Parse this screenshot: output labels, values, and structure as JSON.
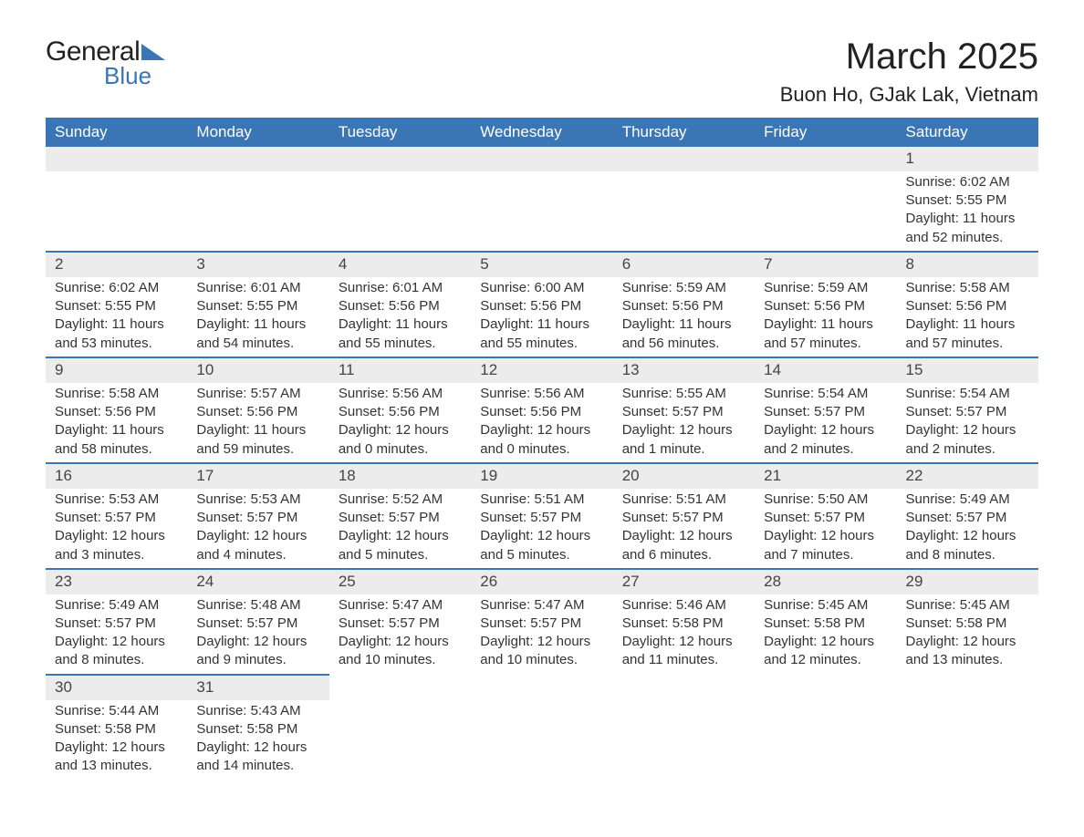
{
  "logo": {
    "top": "General",
    "bottom": "Blue"
  },
  "title": "March 2025",
  "location": "Buon Ho, GJak Lak, Vietnam",
  "colors": {
    "header_bg": "#3a75b5",
    "header_text": "#ffffff",
    "row_stripe": "#ececec",
    "border": "#3a75b5",
    "text": "#333333"
  },
  "weekdays": [
    "Sunday",
    "Monday",
    "Tuesday",
    "Wednesday",
    "Thursday",
    "Friday",
    "Saturday"
  ],
  "weeks": [
    [
      null,
      null,
      null,
      null,
      null,
      null,
      {
        "day": "1",
        "sunrise": "Sunrise: 6:02 AM",
        "sunset": "Sunset: 5:55 PM",
        "daylight": "Daylight: 11 hours and 52 minutes."
      }
    ],
    [
      {
        "day": "2",
        "sunrise": "Sunrise: 6:02 AM",
        "sunset": "Sunset: 5:55 PM",
        "daylight": "Daylight: 11 hours and 53 minutes."
      },
      {
        "day": "3",
        "sunrise": "Sunrise: 6:01 AM",
        "sunset": "Sunset: 5:55 PM",
        "daylight": "Daylight: 11 hours and 54 minutes."
      },
      {
        "day": "4",
        "sunrise": "Sunrise: 6:01 AM",
        "sunset": "Sunset: 5:56 PM",
        "daylight": "Daylight: 11 hours and 55 minutes."
      },
      {
        "day": "5",
        "sunrise": "Sunrise: 6:00 AM",
        "sunset": "Sunset: 5:56 PM",
        "daylight": "Daylight: 11 hours and 55 minutes."
      },
      {
        "day": "6",
        "sunrise": "Sunrise: 5:59 AM",
        "sunset": "Sunset: 5:56 PM",
        "daylight": "Daylight: 11 hours and 56 minutes."
      },
      {
        "day": "7",
        "sunrise": "Sunrise: 5:59 AM",
        "sunset": "Sunset: 5:56 PM",
        "daylight": "Daylight: 11 hours and 57 minutes."
      },
      {
        "day": "8",
        "sunrise": "Sunrise: 5:58 AM",
        "sunset": "Sunset: 5:56 PM",
        "daylight": "Daylight: 11 hours and 57 minutes."
      }
    ],
    [
      {
        "day": "9",
        "sunrise": "Sunrise: 5:58 AM",
        "sunset": "Sunset: 5:56 PM",
        "daylight": "Daylight: 11 hours and 58 minutes."
      },
      {
        "day": "10",
        "sunrise": "Sunrise: 5:57 AM",
        "sunset": "Sunset: 5:56 PM",
        "daylight": "Daylight: 11 hours and 59 minutes."
      },
      {
        "day": "11",
        "sunrise": "Sunrise: 5:56 AM",
        "sunset": "Sunset: 5:56 PM",
        "daylight": "Daylight: 12 hours and 0 minutes."
      },
      {
        "day": "12",
        "sunrise": "Sunrise: 5:56 AM",
        "sunset": "Sunset: 5:56 PM",
        "daylight": "Daylight: 12 hours and 0 minutes."
      },
      {
        "day": "13",
        "sunrise": "Sunrise: 5:55 AM",
        "sunset": "Sunset: 5:57 PM",
        "daylight": "Daylight: 12 hours and 1 minute."
      },
      {
        "day": "14",
        "sunrise": "Sunrise: 5:54 AM",
        "sunset": "Sunset: 5:57 PM",
        "daylight": "Daylight: 12 hours and 2 minutes."
      },
      {
        "day": "15",
        "sunrise": "Sunrise: 5:54 AM",
        "sunset": "Sunset: 5:57 PM",
        "daylight": "Daylight: 12 hours and 2 minutes."
      }
    ],
    [
      {
        "day": "16",
        "sunrise": "Sunrise: 5:53 AM",
        "sunset": "Sunset: 5:57 PM",
        "daylight": "Daylight: 12 hours and 3 minutes."
      },
      {
        "day": "17",
        "sunrise": "Sunrise: 5:53 AM",
        "sunset": "Sunset: 5:57 PM",
        "daylight": "Daylight: 12 hours and 4 minutes."
      },
      {
        "day": "18",
        "sunrise": "Sunrise: 5:52 AM",
        "sunset": "Sunset: 5:57 PM",
        "daylight": "Daylight: 12 hours and 5 minutes."
      },
      {
        "day": "19",
        "sunrise": "Sunrise: 5:51 AM",
        "sunset": "Sunset: 5:57 PM",
        "daylight": "Daylight: 12 hours and 5 minutes."
      },
      {
        "day": "20",
        "sunrise": "Sunrise: 5:51 AM",
        "sunset": "Sunset: 5:57 PM",
        "daylight": "Daylight: 12 hours and 6 minutes."
      },
      {
        "day": "21",
        "sunrise": "Sunrise: 5:50 AM",
        "sunset": "Sunset: 5:57 PM",
        "daylight": "Daylight: 12 hours and 7 minutes."
      },
      {
        "day": "22",
        "sunrise": "Sunrise: 5:49 AM",
        "sunset": "Sunset: 5:57 PM",
        "daylight": "Daylight: 12 hours and 8 minutes."
      }
    ],
    [
      {
        "day": "23",
        "sunrise": "Sunrise: 5:49 AM",
        "sunset": "Sunset: 5:57 PM",
        "daylight": "Daylight: 12 hours and 8 minutes."
      },
      {
        "day": "24",
        "sunrise": "Sunrise: 5:48 AM",
        "sunset": "Sunset: 5:57 PM",
        "daylight": "Daylight: 12 hours and 9 minutes."
      },
      {
        "day": "25",
        "sunrise": "Sunrise: 5:47 AM",
        "sunset": "Sunset: 5:57 PM",
        "daylight": "Daylight: 12 hours and 10 minutes."
      },
      {
        "day": "26",
        "sunrise": "Sunrise: 5:47 AM",
        "sunset": "Sunset: 5:57 PM",
        "daylight": "Daylight: 12 hours and 10 minutes."
      },
      {
        "day": "27",
        "sunrise": "Sunrise: 5:46 AM",
        "sunset": "Sunset: 5:58 PM",
        "daylight": "Daylight: 12 hours and 11 minutes."
      },
      {
        "day": "28",
        "sunrise": "Sunrise: 5:45 AM",
        "sunset": "Sunset: 5:58 PM",
        "daylight": "Daylight: 12 hours and 12 minutes."
      },
      {
        "day": "29",
        "sunrise": "Sunrise: 5:45 AM",
        "sunset": "Sunset: 5:58 PM",
        "daylight": "Daylight: 12 hours and 13 minutes."
      }
    ],
    [
      {
        "day": "30",
        "sunrise": "Sunrise: 5:44 AM",
        "sunset": "Sunset: 5:58 PM",
        "daylight": "Daylight: 12 hours and 13 minutes."
      },
      {
        "day": "31",
        "sunrise": "Sunrise: 5:43 AM",
        "sunset": "Sunset: 5:58 PM",
        "daylight": "Daylight: 12 hours and 14 minutes."
      },
      null,
      null,
      null,
      null,
      null
    ]
  ]
}
